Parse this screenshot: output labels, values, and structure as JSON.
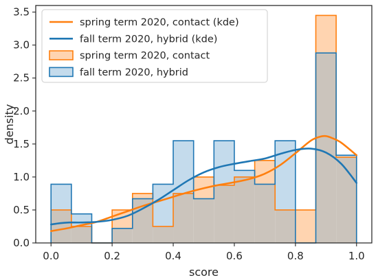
{
  "chart_data": {
    "type": "histogram_with_kde",
    "xlabel": "score",
    "ylabel": "density",
    "xlim": [
      -0.05,
      1.05
    ],
    "ylim": [
      0,
      3.6
    ],
    "x_ticks": [
      "0.0",
      "0.2",
      "0.4",
      "0.6",
      "0.8",
      "1.0"
    ],
    "y_ticks": [
      "0.0",
      "0.5",
      "1.0",
      "1.5",
      "2.0",
      "2.5",
      "3.0",
      "3.5"
    ],
    "grid": false,
    "legend_position": "top-left",
    "colors": {
      "spring": "#ff7f0e",
      "fall": "#1f77b4",
      "spring_fill": "#ffd4b0",
      "fall_fill": "#c4dbec",
      "overlap_fill": "#cbc4bc"
    },
    "bin_edges": [
      0.0,
      0.0667,
      0.1333,
      0.2,
      0.2667,
      0.3333,
      0.4,
      0.4667,
      0.5333,
      0.6,
      0.6667,
      0.7333,
      0.8,
      0.8667,
      0.9333,
      1.0
    ],
    "histograms": [
      {
        "name": "spring term 2020, contact",
        "values": [
          0.5,
          0.25,
          0.0,
          0.5,
          0.75,
          0.25,
          0.75,
          1.0,
          0.875,
          1.0,
          1.25,
          0.5,
          0.5,
          3.45,
          1.3
        ]
      },
      {
        "name": "fall term 2020, hybrid",
        "values": [
          0.89,
          0.44,
          0.0,
          0.22,
          0.67,
          0.89,
          1.55,
          0.67,
          1.55,
          1.1,
          0.89,
          1.55,
          0.0,
          2.88,
          1.33
        ]
      }
    ],
    "kde": [
      {
        "name": "spring term 2020, contact (kde)",
        "x": [
          0.0,
          0.05,
          0.1,
          0.15,
          0.2,
          0.25,
          0.3,
          0.35,
          0.4,
          0.45,
          0.5,
          0.55,
          0.6,
          0.65,
          0.7,
          0.75,
          0.8,
          0.85,
          0.88,
          0.9,
          0.92,
          0.95,
          1.0
        ],
        "y": [
          0.18,
          0.22,
          0.27,
          0.32,
          0.4,
          0.48,
          0.56,
          0.63,
          0.7,
          0.77,
          0.83,
          0.88,
          0.92,
          0.97,
          1.05,
          1.18,
          1.36,
          1.55,
          1.61,
          1.62,
          1.59,
          1.52,
          1.33
        ]
      },
      {
        "name": "fall term 2020, hybrid (kde)",
        "x": [
          0.0,
          0.03,
          0.06,
          0.1,
          0.15,
          0.2,
          0.25,
          0.3,
          0.35,
          0.4,
          0.45,
          0.5,
          0.55,
          0.6,
          0.65,
          0.7,
          0.75,
          0.8,
          0.85,
          0.9,
          0.95,
          1.0
        ],
        "y": [
          0.28,
          0.3,
          0.31,
          0.31,
          0.32,
          0.35,
          0.41,
          0.52,
          0.65,
          0.8,
          0.95,
          1.07,
          1.15,
          1.2,
          1.24,
          1.28,
          1.35,
          1.41,
          1.43,
          1.37,
          1.2,
          0.91
        ]
      }
    ],
    "legend": [
      {
        "label": "spring term 2020, contact (kde)",
        "kind": "line",
        "series": "spring"
      },
      {
        "label": "fall term 2020, hybrid (kde)",
        "kind": "line",
        "series": "fall"
      },
      {
        "label": "spring term 2020, contact",
        "kind": "patch",
        "series": "spring"
      },
      {
        "label": "fall term 2020, hybrid",
        "kind": "patch",
        "series": "fall"
      }
    ]
  }
}
